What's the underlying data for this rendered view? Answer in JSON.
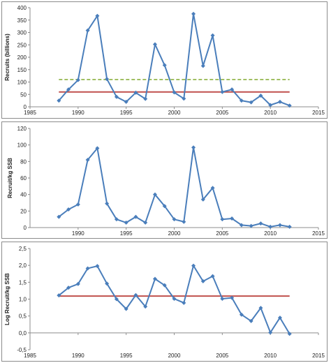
{
  "chart_data": [
    {
      "type": "line",
      "ylabel": "Recruits (billions)",
      "xlim": [
        1985,
        2015
      ],
      "ylim": [
        0,
        400
      ],
      "xticks": [
        1985,
        1990,
        1995,
        2000,
        2005,
        2010,
        2015
      ],
      "yticks": [
        0,
        50,
        100,
        150,
        200,
        250,
        300,
        350,
        400
      ],
      "grid": false,
      "series": [
        {
          "color": "#4a7ebb",
          "marker": "diamond",
          "x": [
            1988,
            1989,
            1990,
            1991,
            1992,
            1993,
            1994,
            1995,
            1996,
            1997,
            1998,
            1999,
            2000,
            2001,
            2002,
            2003,
            2004,
            2005,
            2006,
            2007,
            2008,
            2009,
            2010,
            2011,
            2012
          ],
          "y": [
            25,
            70,
            108,
            308,
            367,
            112,
            40,
            20,
            57,
            32,
            252,
            168,
            58,
            33,
            375,
            165,
            288,
            60,
            70,
            25,
            18,
            45,
            7,
            20,
            5
          ]
        }
      ],
      "reference_lines": [
        {
          "y": 110,
          "x_range": [
            1988,
            2012
          ],
          "color": "#9bbb59",
          "style": "dashed"
        },
        {
          "y": 60,
          "x_range": [
            1988,
            2012
          ],
          "color": "#c0504d",
          "style": "solid"
        }
      ]
    },
    {
      "type": "line",
      "ylabel": "Recruit/kg SSB",
      "xlim": [
        1985,
        2015
      ],
      "ylim": [
        0,
        120
      ],
      "xticks": [
        1990,
        1995,
        2000,
        2005,
        2010,
        2015
      ],
      "yticks": [
        0,
        20,
        40,
        60,
        80,
        100,
        120
      ],
      "grid": false,
      "series": [
        {
          "color": "#4a7ebb",
          "marker": "diamond",
          "x": [
            1988,
            1989,
            1990,
            1991,
            1992,
            1993,
            1994,
            1995,
            1996,
            1997,
            1998,
            1999,
            2000,
            2001,
            2002,
            2003,
            2004,
            2005,
            2006,
            2007,
            2008,
            2009,
            2010,
            2011,
            2012
          ],
          "y": [
            13,
            22,
            28,
            82,
            96,
            29,
            10,
            6,
            13,
            6,
            40,
            26,
            10,
            7,
            97,
            34,
            48,
            10,
            11,
            3,
            2,
            5,
            1,
            3,
            1
          ]
        }
      ],
      "reference_lines": []
    },
    {
      "type": "line",
      "ylabel": "Log Recruit/kg SSB",
      "xlim": [
        1985,
        2015
      ],
      "ylim": [
        -0.5,
        2.5
      ],
      "xticks": [
        1985,
        1990,
        1995,
        2000,
        2005,
        2010,
        2015
      ],
      "yticks": [
        -0.5,
        0.0,
        0.5,
        1.0,
        1.5,
        2.0,
        2.5
      ],
      "ytick_labels": [
        "-0,5",
        "0,0",
        "0,5",
        "1,0",
        "1,5",
        "2,0",
        "2,5"
      ],
      "grid": false,
      "series": [
        {
          "color": "#4a7ebb",
          "marker": "diamond",
          "x": [
            1988,
            1989,
            1990,
            1991,
            1992,
            1993,
            1994,
            1995,
            1996,
            1997,
            1998,
            1999,
            2000,
            2001,
            2002,
            2003,
            2004,
            2005,
            2006,
            2007,
            2008,
            2009,
            2010,
            2011,
            2012
          ],
          "y": [
            1.11,
            1.34,
            1.45,
            1.91,
            1.98,
            1.46,
            1.0,
            0.71,
            1.12,
            0.78,
            1.6,
            1.41,
            1.01,
            0.89,
            1.99,
            1.53,
            1.68,
            1.01,
            1.04,
            0.54,
            0.35,
            0.74,
            0.01,
            0.45,
            -0.03
          ]
        }
      ],
      "reference_lines": [
        {
          "y": 1.09,
          "x_range": [
            1988,
            2012
          ],
          "color": "#c0504d",
          "style": "solid"
        }
      ]
    }
  ]
}
